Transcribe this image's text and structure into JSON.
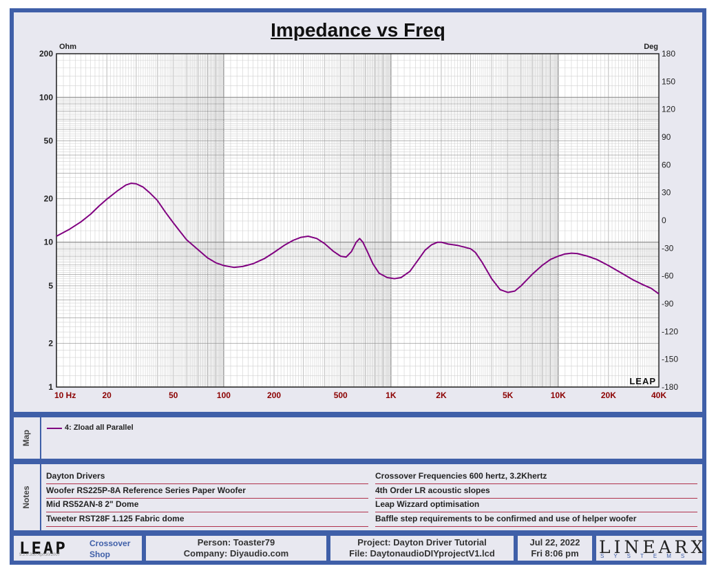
{
  "chart_data": {
    "type": "line",
    "title": "Impedance vs Freq",
    "y_left_unit": "Ohm",
    "y_right_unit": "Deg",
    "x_scale": "log",
    "y_left_scale": "log",
    "xlim": [
      10,
      40000
    ],
    "ylim": [
      1,
      200
    ],
    "y_right_lim": [
      -180,
      180
    ],
    "x_ticks": [
      {
        "v": 10,
        "label": "10  Hz"
      },
      {
        "v": 20,
        "label": "20"
      },
      {
        "v": 50,
        "label": "50"
      },
      {
        "v": 100,
        "label": "100"
      },
      {
        "v": 200,
        "label": "200"
      },
      {
        "v": 500,
        "label": "500"
      },
      {
        "v": 1000,
        "label": "1K"
      },
      {
        "v": 2000,
        "label": "2K"
      },
      {
        "v": 5000,
        "label": "5K"
      },
      {
        "v": 10000,
        "label": "10K"
      },
      {
        "v": 20000,
        "label": "20K"
      },
      {
        "v": 40000,
        "label": "40K"
      }
    ],
    "y_left_ticks": [
      {
        "v": 1,
        "label": "1"
      },
      {
        "v": 2,
        "label": "2"
      },
      {
        "v": 5,
        "label": "5"
      },
      {
        "v": 10,
        "label": "10"
      },
      {
        "v": 20,
        "label": "20"
      },
      {
        "v": 50,
        "label": "50"
      },
      {
        "v": 100,
        "label": "100"
      },
      {
        "v": 200,
        "label": "200"
      }
    ],
    "y_right_ticks": [
      180,
      150,
      120,
      90,
      60,
      30,
      0,
      -30,
      -60,
      -90,
      -120,
      -150,
      -180
    ],
    "grid": true,
    "watermark": "LEAP",
    "series": [
      {
        "name": "4: Zload all Parallel",
        "color": "#800080",
        "points": [
          [
            10,
            11.0
          ],
          [
            12,
            12.3
          ],
          [
            14,
            13.8
          ],
          [
            16,
            15.6
          ],
          [
            18,
            17.8
          ],
          [
            20,
            19.8
          ],
          [
            23,
            22.5
          ],
          [
            26,
            24.8
          ],
          [
            28,
            25.5
          ],
          [
            30,
            25.3
          ],
          [
            33,
            24.0
          ],
          [
            36,
            22.0
          ],
          [
            40,
            19.5
          ],
          [
            45,
            16.0
          ],
          [
            50,
            13.6
          ],
          [
            55,
            11.8
          ],
          [
            60,
            10.4
          ],
          [
            70,
            8.9
          ],
          [
            80,
            7.8
          ],
          [
            90,
            7.2
          ],
          [
            100,
            6.9
          ],
          [
            115,
            6.7
          ],
          [
            130,
            6.8
          ],
          [
            150,
            7.1
          ],
          [
            175,
            7.7
          ],
          [
            200,
            8.5
          ],
          [
            230,
            9.5
          ],
          [
            260,
            10.3
          ],
          [
            290,
            10.8
          ],
          [
            320,
            11.0
          ],
          [
            360,
            10.6
          ],
          [
            400,
            9.8
          ],
          [
            450,
            8.7
          ],
          [
            500,
            8.0
          ],
          [
            540,
            7.9
          ],
          [
            580,
            8.6
          ],
          [
            620,
            10.0
          ],
          [
            650,
            10.6
          ],
          [
            680,
            10.0
          ],
          [
            720,
            8.7
          ],
          [
            780,
            7.1
          ],
          [
            850,
            6.1
          ],
          [
            950,
            5.7
          ],
          [
            1050,
            5.6
          ],
          [
            1150,
            5.7
          ],
          [
            1300,
            6.3
          ],
          [
            1450,
            7.5
          ],
          [
            1600,
            8.8
          ],
          [
            1750,
            9.6
          ],
          [
            1900,
            10.0
          ],
          [
            2000,
            10.0
          ],
          [
            2200,
            9.7
          ],
          [
            2500,
            9.5
          ],
          [
            2800,
            9.2
          ],
          [
            3000,
            9.0
          ],
          [
            3200,
            8.5
          ],
          [
            3500,
            7.3
          ],
          [
            4000,
            5.6
          ],
          [
            4500,
            4.7
          ],
          [
            5000,
            4.5
          ],
          [
            5500,
            4.6
          ],
          [
            6000,
            5.0
          ],
          [
            7000,
            6.0
          ],
          [
            8000,
            6.9
          ],
          [
            9000,
            7.6
          ],
          [
            10000,
            8.0
          ],
          [
            11000,
            8.3
          ],
          [
            12000,
            8.4
          ],
          [
            13000,
            8.35
          ],
          [
            15000,
            8.0
          ],
          [
            17000,
            7.6
          ],
          [
            20000,
            6.9
          ],
          [
            24000,
            6.1
          ],
          [
            28000,
            5.5
          ],
          [
            32000,
            5.1
          ],
          [
            36000,
            4.8
          ],
          [
            40000,
            4.4
          ]
        ]
      }
    ]
  },
  "map": {
    "label": "Map",
    "legend": "4: Zload all Parallel"
  },
  "notes": {
    "label": "Notes",
    "left": [
      "Dayton Drivers",
      "Woofer RS225P-8A Reference Series Paper Woofer",
      "Mid RS52AN-8 2\" Dome",
      "Tweeter RST28F 1.125 Fabric dome"
    ],
    "right": [
      "Crossover Frequencies 600 hertz, 3.2Khertz",
      "4th Order LR acoustic slopes",
      "Leap Wizzard optimisation",
      "Baffle step requirements to be confirmed and use of helper woofer"
    ]
  },
  "footer": {
    "logo": "LEAP",
    "version": "5.2.0.350   Apr/30/2007",
    "product_line1": "Crossover",
    "product_line2": "Shop",
    "person": "Person: Toaster79",
    "company": "Company: Diyaudio.com",
    "project": "Project: Dayton Driver Tutorial",
    "file": "File: DaytonaudioDIYprojectV1.lcd",
    "date": "Jul 22, 2022",
    "time": "Fri  8:06 pm",
    "brand": "LINEARX",
    "brand_sub": "SYSTEMS"
  },
  "colors": {
    "frame": "#3f5fa8",
    "panel": "#e8e8f0",
    "trace": "#800080",
    "x_tick_label": "#8b0000"
  }
}
